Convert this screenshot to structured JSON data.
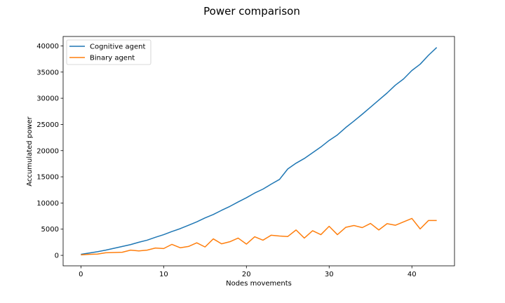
{
  "chart_data": {
    "type": "line",
    "title": "Power comparison",
    "xlabel": "Nodes movements",
    "ylabel": "Accumulated power",
    "xlim": [
      -2.15,
      45.15
    ],
    "ylim": [
      -2000,
      41800
    ],
    "xticks": [
      0,
      10,
      20,
      30,
      40
    ],
    "yticks": [
      0,
      5000,
      10000,
      15000,
      20000,
      25000,
      30000,
      35000,
      40000
    ],
    "grid": false,
    "legend_position": "top-left",
    "series": [
      {
        "name": "Cognitive agent",
        "color": "#1f77b4",
        "x": [
          0,
          1,
          2,
          3,
          4,
          5,
          6,
          7,
          8,
          9,
          10,
          11,
          12,
          13,
          14,
          15,
          16,
          17,
          18,
          19,
          20,
          21,
          22,
          23,
          24,
          25,
          26,
          27,
          28,
          29,
          30,
          31,
          32,
          33,
          34,
          35,
          36,
          37,
          38,
          39,
          40,
          41,
          42,
          43
        ],
        "y": [
          200,
          450,
          700,
          1000,
          1350,
          1700,
          2050,
          2500,
          2900,
          3450,
          3950,
          4550,
          5100,
          5750,
          6400,
          7150,
          7800,
          8600,
          9350,
          10200,
          11000,
          11900,
          12650,
          13600,
          14500,
          16500,
          17600,
          18500,
          19600,
          20700,
          21950,
          23000,
          24400,
          25650,
          26950,
          28300,
          29650,
          31000,
          32500,
          33700,
          35300,
          36500,
          38200,
          39700
        ]
      },
      {
        "name": "Binary agent",
        "color": "#ff7f0e",
        "x": [
          0,
          1,
          2,
          3,
          4,
          5,
          6,
          7,
          8,
          9,
          10,
          11,
          12,
          13,
          14,
          15,
          16,
          17,
          18,
          19,
          20,
          21,
          22,
          23,
          24,
          25,
          26,
          27,
          28,
          29,
          30,
          31,
          32,
          33,
          34,
          35,
          36,
          37,
          38,
          39,
          40,
          41,
          42,
          43
        ],
        "y": [
          100,
          200,
          250,
          500,
          550,
          600,
          1000,
          850,
          1000,
          1400,
          1300,
          2100,
          1450,
          1700,
          2400,
          1600,
          3150,
          2200,
          2600,
          3300,
          2150,
          3550,
          2900,
          3850,
          3700,
          3600,
          4850,
          3300,
          4700,
          3950,
          5550,
          3950,
          5350,
          5700,
          5300,
          6100,
          4850,
          6050,
          5750,
          6400,
          7050,
          5050,
          6650,
          6650
        ]
      }
    ]
  }
}
